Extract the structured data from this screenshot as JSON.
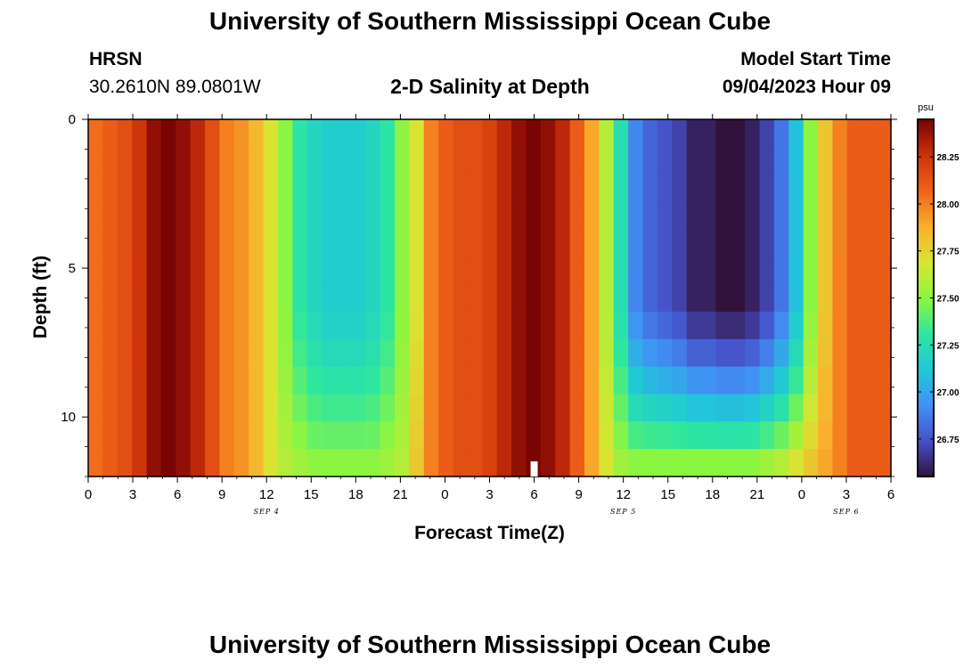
{
  "header": {
    "title": "University of Southern Mississippi Ocean Cube",
    "station_name": "HRSN",
    "station_coords": "30.2610N  89.0801W",
    "plot_title": "2-D Salinity at Depth",
    "model_start_label": "Model Start Time",
    "model_start_value": "09/04/2023 Hour 09"
  },
  "footer": {
    "title": "University of Southern Mississippi Ocean Cube"
  },
  "chart_data": {
    "type": "heatmap",
    "title": "2-D Salinity at Depth",
    "xlabel": "Forecast Time(Z)",
    "ylabel": "Depth (ft)",
    "x_ticks": [
      "0",
      "3",
      "6",
      "9",
      "12",
      "15",
      "18",
      "21",
      "0",
      "3",
      "6",
      "9",
      "12",
      "15",
      "18",
      "21",
      "0",
      "3",
      "6"
    ],
    "date_labels": [
      {
        "label": "SEP 4",
        "hours": 12
      },
      {
        "label": "SEP 5",
        "hours": 36
      },
      {
        "label": "SEP 6",
        "hours": 51
      }
    ],
    "x_range_hours": [
      0,
      54
    ],
    "y_ticks": [
      "0",
      "5",
      "10"
    ],
    "ylim": [
      0,
      12
    ],
    "depths_ft": [
      0,
      1,
      2,
      3,
      4,
      5,
      6,
      7,
      8,
      9,
      10,
      11,
      12
    ],
    "now_marker_hours": 30,
    "colorbar": {
      "unit": "psu",
      "ticks": [
        "28.25",
        "28.00",
        "27.75",
        "27.50",
        "27.25",
        "27.00",
        "26.75"
      ],
      "range": [
        26.55,
        28.45
      ]
    },
    "salinity_surface_psu": [
      28.05,
      28.1,
      28.15,
      28.25,
      28.4,
      28.45,
      28.4,
      28.3,
      28.15,
      28.0,
      27.95,
      27.85,
      27.7,
      27.5,
      27.3,
      27.2,
      27.15,
      27.15,
      27.15,
      27.2,
      27.3,
      27.5,
      27.7,
      28.0,
      28.1,
      28.15,
      28.15,
      28.2,
      28.3,
      28.4,
      28.45,
      28.4,
      28.3,
      28.1,
      27.9,
      27.6,
      27.25,
      26.9,
      26.8,
      26.75,
      26.7,
      26.6,
      26.6,
      26.55,
      26.55,
      26.6,
      26.7,
      26.85,
      27.1,
      27.5,
      27.8,
      28.0,
      28.1,
      28.1,
      28.1
    ],
    "salinity_bottom_psu": [
      28.05,
      28.1,
      28.15,
      28.25,
      28.4,
      28.45,
      28.4,
      28.3,
      28.15,
      28.0,
      27.95,
      27.85,
      27.7,
      27.6,
      27.55,
      27.5,
      27.5,
      27.5,
      27.5,
      27.5,
      27.55,
      27.6,
      27.8,
      28.0,
      28.1,
      28.15,
      28.15,
      28.2,
      28.3,
      28.4,
      28.45,
      28.4,
      28.3,
      28.1,
      27.9,
      27.7,
      27.55,
      27.5,
      27.5,
      27.5,
      27.5,
      27.5,
      27.5,
      27.5,
      27.5,
      27.5,
      27.55,
      27.6,
      27.7,
      27.8,
      27.9,
      28.0,
      28.1,
      28.1,
      28.1
    ]
  }
}
